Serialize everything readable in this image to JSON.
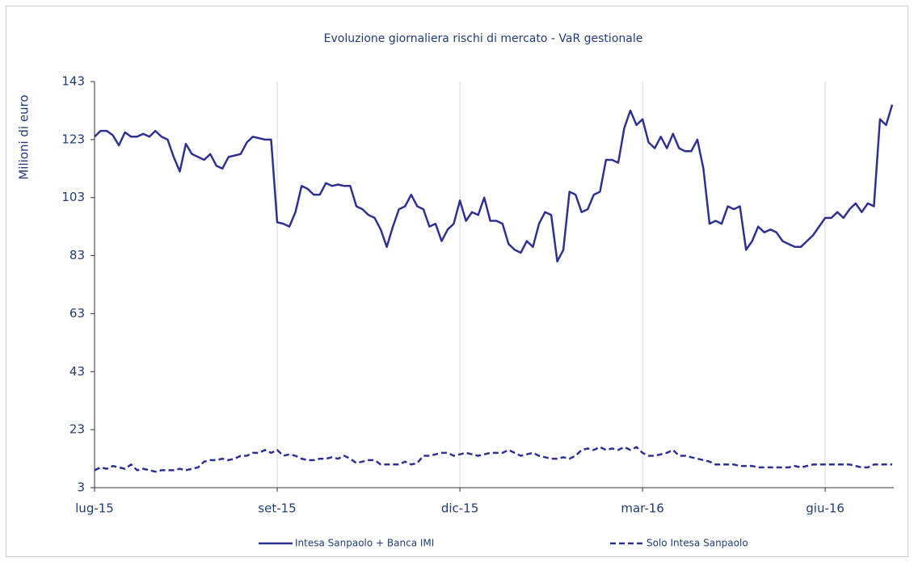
{
  "chart_data": {
    "type": "line",
    "title": "Evoluzione giornaliera rischi di mercato - VaR gestionale",
    "y_label": "Milioni di euro",
    "categories": [
      "lug-15",
      null,
      null,
      null,
      null,
      null,
      null,
      null,
      null,
      null,
      null,
      null,
      null,
      null,
      null,
      null,
      null,
      null,
      null,
      null,
      null,
      null,
      null,
      null,
      null,
      null,
      null,
      null,
      null,
      null,
      "set-15",
      null,
      null,
      null,
      null,
      null,
      null,
      null,
      null,
      null,
      null,
      null,
      null,
      null,
      null,
      null,
      null,
      null,
      null,
      null,
      null,
      null,
      null,
      null,
      null,
      null,
      null,
      null,
      null,
      null,
      "dic-15",
      null,
      null,
      null,
      null,
      null,
      null,
      null,
      null,
      null,
      null,
      null,
      null,
      null,
      null,
      null,
      null,
      null,
      null,
      null,
      null,
      null,
      null,
      null,
      null,
      null,
      null,
      null,
      null,
      null,
      "mar-16",
      null,
      null,
      null,
      null,
      null,
      null,
      null,
      null,
      null,
      null,
      null,
      null,
      null,
      null,
      null,
      null,
      null,
      null,
      null,
      null,
      null,
      null,
      null,
      null,
      null,
      null,
      null,
      null,
      null,
      "giu-16",
      null,
      null,
      null,
      null,
      null,
      null,
      null,
      null,
      null,
      null,
      null
    ],
    "series": [
      {
        "name": "Intesa Sanpaolo + Banca IMI",
        "color": "#2f3192",
        "dash": false,
        "values": [
          124,
          126,
          126,
          124.5,
          121,
          125.5,
          124,
          124,
          125,
          124,
          126,
          124,
          123,
          117,
          112,
          121.5,
          118,
          117,
          116,
          118,
          114,
          113,
          117,
          117.5,
          118,
          122,
          124,
          123.5,
          123,
          123,
          94.5,
          94,
          93,
          98,
          107,
          106,
          104,
          104,
          108,
          107,
          107.5,
          107,
          107,
          100,
          99,
          97,
          96,
          92,
          86,
          93,
          99,
          100,
          104,
          100,
          99,
          93,
          94,
          88,
          92,
          94,
          102,
          95,
          98,
          97,
          103,
          95,
          95,
          94,
          87,
          85,
          84,
          88,
          86,
          94,
          98,
          97,
          81,
          85,
          105,
          104,
          98,
          99,
          104,
          105,
          116,
          116,
          115,
          127,
          133,
          128,
          130,
          122,
          120,
          124,
          120,
          125,
          120,
          119,
          119,
          123,
          113,
          94,
          95,
          94,
          100,
          99,
          100,
          85,
          88,
          93,
          91,
          92,
          91,
          88,
          87,
          86,
          86,
          88,
          90,
          93,
          96,
          96,
          98,
          96,
          99,
          101,
          98,
          101,
          100,
          130,
          128,
          135
        ]
      },
      {
        "name": "Solo Intesa Sanpaolo",
        "color": "#2f3192",
        "dash": true,
        "values": [
          9,
          10,
          9.5,
          10.5,
          10,
          9.5,
          11,
          9,
          9.5,
          9,
          8.5,
          9,
          9,
          9,
          9.5,
          9,
          9.5,
          10,
          12,
          12.5,
          12.5,
          13,
          12.5,
          13,
          14,
          14,
          15,
          15,
          16,
          15,
          16,
          14,
          14.5,
          14,
          13,
          12.5,
          12.5,
          13,
          13,
          13.5,
          13,
          14,
          13,
          11.5,
          12,
          12.5,
          12.5,
          11,
          11,
          11,
          11,
          12,
          11,
          11.5,
          14,
          14,
          14.5,
          15,
          15,
          14,
          14.5,
          15,
          14.5,
          14,
          14.5,
          15,
          15,
          15,
          16,
          15,
          14,
          14.5,
          15,
          14,
          13.5,
          13,
          13,
          13.5,
          13,
          14,
          16,
          16.5,
          16,
          17,
          16,
          16.5,
          16,
          17,
          16,
          17,
          15,
          14,
          14,
          14.5,
          15,
          16,
          14,
          14,
          13.5,
          13,
          12.5,
          12,
          11,
          11,
          11,
          11,
          10.5,
          10.5,
          10.5,
          10,
          10,
          10,
          10,
          10,
          10,
          10.5,
          10,
          10.5,
          11,
          11,
          11,
          11,
          11,
          11,
          11,
          10.5,
          10,
          10,
          11,
          11,
          11,
          11
        ]
      }
    ],
    "ylim": [
      3,
      143
    ],
    "yticks": [
      3,
      23,
      43,
      63,
      83,
      103,
      123,
      143
    ],
    "grid": "x"
  }
}
